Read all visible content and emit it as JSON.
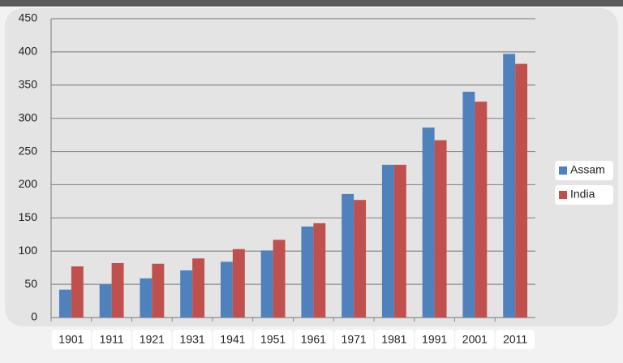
{
  "chart_data": {
    "type": "bar",
    "categories": [
      "1901",
      "1911",
      "1921",
      "1931",
      "1941",
      "1951",
      "1961",
      "1971",
      "1981",
      "1991",
      "2001",
      "2011"
    ],
    "series": [
      {
        "name": "Assam",
        "color": "#4f81bd",
        "values": [
          42,
          50,
          59,
          71,
          84,
          101,
          137,
          186,
          230,
          286,
          340,
          397
        ]
      },
      {
        "name": "India",
        "color": "#c0504d",
        "values": [
          77,
          82,
          81,
          89,
          103,
          117,
          142,
          177,
          230,
          267,
          325,
          382
        ]
      }
    ],
    "ylim": [
      0,
      450
    ],
    "yticks": [
      0,
      50,
      100,
      150,
      200,
      250,
      300,
      350,
      400,
      450
    ],
    "grid": true,
    "legend": "right"
  }
}
